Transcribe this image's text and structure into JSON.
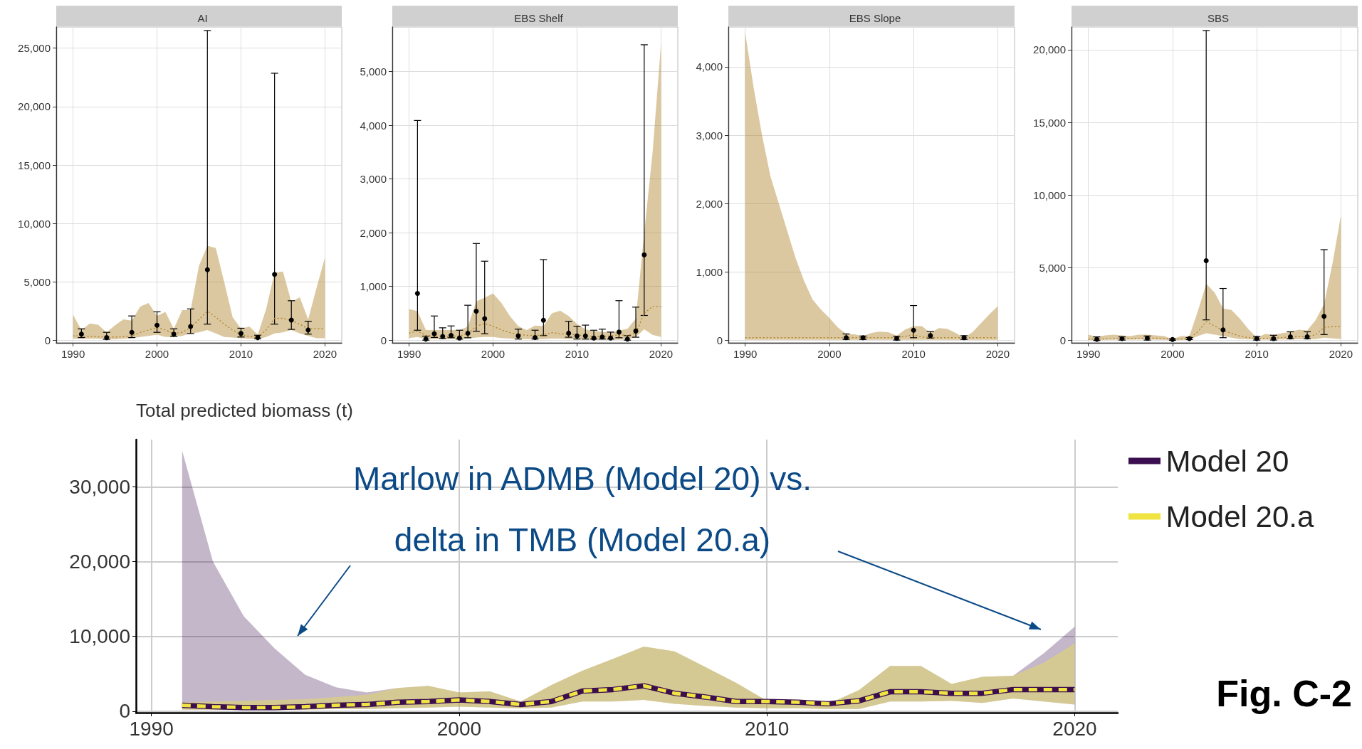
{
  "chart_data": [
    {
      "type": "line",
      "title": "AI",
      "xlim": [
        1988,
        2022
      ],
      "xticks": [
        1990,
        2000,
        2010,
        2020
      ],
      "ylim": [
        -200,
        26800
      ],
      "yticks": [
        {
          "value": 0,
          "label": "0"
        },
        {
          "value": 5000,
          "label": "5,000"
        },
        {
          "value": 10000,
          "label": "10,000"
        },
        {
          "value": 15000,
          "label": "15,000"
        },
        {
          "value": 20000,
          "label": "20,000"
        },
        {
          "value": 25000,
          "label": "25,000"
        }
      ],
      "grid": true,
      "series": [
        {
          "type": "line",
          "color": "#b1852c",
          "line_style": "dotted",
          "marker": "none",
          "x": [
            1990,
            1991,
            1992,
            1993,
            1994,
            1995,
            1996,
            1997,
            1998,
            1999,
            2000,
            2001,
            2002,
            2003,
            2004,
            2005,
            2006,
            2007,
            2008,
            2009,
            2010,
            2011,
            2012,
            2013,
            2014,
            2015,
            2016,
            2017,
            2018,
            2019,
            2020
          ],
          "values": [
            400,
            380,
            350,
            320,
            300,
            300,
            320,
            400,
            700,
            900,
            1100,
            900,
            600,
            700,
            1100,
            1800,
            2500,
            2000,
            1400,
            900,
            500,
            350,
            250,
            900,
            1900,
            1900,
            1700,
            1400,
            1000,
            1000,
            1000
          ],
          "upper": [
            2200,
            900,
            1450,
            1350,
            700,
            1300,
            1800,
            1700,
            2900,
            3200,
            2100,
            2450,
            1000,
            2600,
            2600,
            6400,
            8100,
            7900,
            5000,
            2000,
            1000,
            1200,
            500,
            2700,
            5800,
            5900,
            3300,
            3700,
            1800,
            4500,
            7100
          ],
          "lower": [
            150,
            150,
            150,
            150,
            100,
            100,
            150,
            200,
            300,
            400,
            500,
            300,
            300,
            400,
            600,
            700,
            900,
            600,
            300,
            250,
            200,
            150,
            100,
            300,
            600,
            700,
            900,
            600,
            400,
            200,
            200
          ]
        },
        {
          "type": "scatter",
          "color": "#000000",
          "marker": "circle",
          "x": [
            1991,
            1994,
            1997,
            2000,
            2002,
            2004,
            2006,
            2010,
            2012,
            2014,
            2016,
            2018
          ],
          "values": [
            550,
            250,
            700,
            1300,
            550,
            1200,
            6050,
            600,
            250,
            5650,
            1750,
            900
          ],
          "errors": [
            [
              250,
              1000
            ],
            [
              100,
              700
            ],
            [
              250,
              2100
            ],
            [
              700,
              2450
            ],
            [
              350,
              1000
            ],
            [
              600,
              2700
            ],
            [
              1400,
              26500
            ],
            [
              300,
              1050
            ],
            [
              150,
              450
            ],
            [
              1400,
              22850
            ],
            [
              950,
              3400
            ],
            [
              550,
              1650
            ]
          ]
        }
      ]
    },
    {
      "type": "line",
      "title": "EBS Shelf",
      "xlim": [
        1988,
        2022
      ],
      "xticks": [
        1990,
        2000,
        2010,
        2020
      ],
      "ylim": [
        -50,
        5830
      ],
      "yticks": [
        {
          "value": 0,
          "label": "0"
        },
        {
          "value": 1000,
          "label": "1,000"
        },
        {
          "value": 2000,
          "label": "2,000"
        },
        {
          "value": 3000,
          "label": "3,000"
        },
        {
          "value": 4000,
          "label": "4,000"
        },
        {
          "value": 5000,
          "label": "5,000"
        }
      ],
      "grid": true,
      "series": [
        {
          "type": "line",
          "color": "#b1852c",
          "line_style": "dotted",
          "marker": "none",
          "x": [
            1990,
            1991,
            1992,
            1993,
            1994,
            1995,
            1996,
            1997,
            1998,
            1999,
            2000,
            2001,
            2002,
            2003,
            2004,
            2005,
            2006,
            2007,
            2008,
            2009,
            2010,
            2011,
            2012,
            2013,
            2014,
            2015,
            2016,
            2017,
            2018,
            2019,
            2020
          ],
          "values": [
            130,
            170,
            90,
            70,
            70,
            70,
            80,
            120,
            260,
            310,
            260,
            190,
            140,
            110,
            90,
            90,
            100,
            140,
            120,
            110,
            100,
            80,
            70,
            70,
            80,
            100,
            90,
            130,
            500,
            630,
            630
          ],
          "upper": [
            580,
            540,
            190,
            190,
            190,
            190,
            190,
            250,
            720,
            790,
            870,
            690,
            450,
            260,
            190,
            270,
            260,
            500,
            550,
            450,
            300,
            200,
            170,
            160,
            140,
            180,
            210,
            400,
            2000,
            3500,
            5520
          ],
          "lower": [
            40,
            60,
            20,
            20,
            20,
            20,
            20,
            30,
            50,
            60,
            60,
            40,
            30,
            20,
            20,
            20,
            20,
            30,
            30,
            20,
            20,
            10,
            10,
            10,
            10,
            10,
            10,
            60,
            200,
            100,
            60
          ]
        },
        {
          "type": "scatter",
          "color": "#000000",
          "marker": "circle",
          "x": [
            1991,
            1992,
            1993,
            1994,
            1995,
            1996,
            1997,
            1998,
            1999,
            2003,
            2005,
            2006,
            2009,
            2010,
            2011,
            2012,
            2013,
            2014,
            2015,
            2016,
            2017,
            2018
          ],
          "values": [
            870,
            20,
            120,
            70,
            90,
            40,
            130,
            540,
            400,
            80,
            50,
            370,
            130,
            80,
            80,
            40,
            60,
            40,
            150,
            20,
            170,
            1590
          ],
          "errors": [
            [
              185,
              4090
            ],
            [
              0,
              75
            ],
            [
              50,
              450
            ],
            [
              30,
              230
            ],
            [
              45,
              265
            ],
            [
              20,
              185
            ],
            [
              45,
              650
            ],
            [
              165,
              1800
            ],
            [
              120,
              1470
            ],
            [
              20,
              205
            ],
            [
              20,
              185
            ],
            [
              85,
              1500
            ],
            [
              55,
              350
            ],
            [
              20,
              260
            ],
            [
              20,
              280
            ],
            [
              20,
              185
            ],
            [
              20,
              205
            ],
            [
              20,
              150
            ],
            [
              45,
              735
            ],
            [
              0,
              85
            ],
            [
              55,
              615
            ],
            [
              460,
              5500
            ]
          ]
        }
      ]
    },
    {
      "type": "line",
      "title": "EBS Slope",
      "xlim": [
        1988,
        2022
      ],
      "xticks": [
        1990,
        2000,
        2010,
        2020
      ],
      "ylim": [
        -35,
        4580
      ],
      "yticks": [
        {
          "value": 0,
          "label": "0"
        },
        {
          "value": 1000,
          "label": "1,000"
        },
        {
          "value": 2000,
          "label": "2,000"
        },
        {
          "value": 3000,
          "label": "3,000"
        },
        {
          "value": 4000,
          "label": "4,000"
        }
      ],
      "grid": true,
      "series": [
        {
          "type": "line",
          "color": "#b1852c",
          "line_style": "dotted",
          "marker": "none",
          "x": [
            1990,
            1991,
            1992,
            1993,
            1994,
            1995,
            1996,
            1997,
            1998,
            1999,
            2000,
            2001,
            2002,
            2003,
            2004,
            2005,
            2006,
            2007,
            2008,
            2009,
            2010,
            2011,
            2012,
            2013,
            2014,
            2015,
            2016,
            2017,
            2018,
            2019,
            2020
          ],
          "values": [
            40,
            40,
            40,
            40,
            40,
            40,
            40,
            40,
            40,
            40,
            40,
            40,
            40,
            40,
            40,
            40,
            40,
            40,
            40,
            60,
            80,
            50,
            40,
            40,
            40,
            40,
            40,
            40,
            40,
            40,
            40
          ],
          "upper": [
            4500,
            3700,
            3000,
            2400,
            2000,
            1600,
            1200,
            870,
            600,
            450,
            330,
            190,
            95,
            90,
            60,
            110,
            130,
            120,
            70,
            160,
            210,
            210,
            110,
            180,
            170,
            110,
            40,
            120,
            250,
            380,
            500
          ],
          "lower": [
            10,
            10,
            10,
            10,
            10,
            10,
            10,
            10,
            10,
            10,
            10,
            10,
            10,
            10,
            10,
            10,
            10,
            10,
            10,
            10,
            10,
            10,
            10,
            10,
            10,
            10,
            10,
            10,
            10,
            10,
            10
          ]
        },
        {
          "type": "scatter",
          "color": "#000000",
          "marker": "circle",
          "x": [
            2002,
            2004,
            2008,
            2010,
            2012,
            2016
          ],
          "values": [
            40,
            40,
            30,
            150,
            70,
            40
          ],
          "errors": [
            [
              15,
              95
            ],
            [
              15,
              65
            ],
            [
              5,
              60
            ],
            [
              40,
              510
            ],
            [
              35,
              130
            ],
            [
              15,
              70
            ]
          ]
        }
      ]
    },
    {
      "type": "line",
      "title": "SBS",
      "xlim": [
        1988,
        2022
      ],
      "xticks": [
        1990,
        2000,
        2010,
        2020
      ],
      "ylim": [
        -160,
        21560
      ],
      "yticks": [
        {
          "value": 0,
          "label": "0"
        },
        {
          "value": 5000,
          "label": "5,000"
        },
        {
          "value": 10000,
          "label": "10,000"
        },
        {
          "value": 15000,
          "label": "15,000"
        },
        {
          "value": 20000,
          "label": "20,000"
        }
      ],
      "grid": true,
      "series": [
        {
          "type": "line",
          "color": "#b1852c",
          "line_style": "dotted",
          "marker": "none",
          "x": [
            1990,
            1991,
            1992,
            1993,
            1994,
            1995,
            1996,
            1997,
            1998,
            1999,
            2000,
            2001,
            2002,
            2003,
            2004,
            2005,
            2006,
            2007,
            2008,
            2009,
            2010,
            2011,
            2012,
            2013,
            2014,
            2015,
            2016,
            2017,
            2018,
            2019,
            2020
          ],
          "values": [
            80,
            90,
            110,
            120,
            130,
            140,
            150,
            160,
            160,
            140,
            90,
            110,
            150,
            600,
            1300,
            1000,
            700,
            500,
            300,
            200,
            150,
            150,
            170,
            200,
            250,
            260,
            260,
            400,
            900,
            950,
            950
          ],
          "upper": [
            400,
            250,
            350,
            400,
            350,
            300,
            400,
            400,
            350,
            300,
            100,
            300,
            300,
            2000,
            3900,
            3300,
            2200,
            2100,
            1500,
            800,
            200,
            450,
            400,
            500,
            600,
            750,
            700,
            1400,
            2500,
            5300,
            8600
          ],
          "lower": [
            30,
            30,
            50,
            60,
            60,
            60,
            70,
            70,
            60,
            50,
            20,
            40,
            60,
            300,
            500,
            400,
            300,
            200,
            100,
            80,
            60,
            60,
            60,
            70,
            80,
            80,
            80,
            100,
            200,
            150,
            100
          ]
        },
        {
          "type": "scatter",
          "color": "#000000",
          "marker": "circle",
          "x": [
            1991,
            1994,
            1997,
            2000,
            2002,
            2004,
            2006,
            2010,
            2012,
            2014,
            2016,
            2018
          ],
          "values": [
            80,
            130,
            160,
            70,
            130,
            5490,
            730,
            130,
            130,
            250,
            250,
            1660
          ],
          "errors": [
            [
              0,
              250
            ],
            [
              30,
              250
            ],
            [
              30,
              310
            ],
            [
              15,
              110
            ],
            [
              65,
              200
            ],
            [
              1420,
              21320
            ],
            [
              195,
              3580
            ],
            [
              30,
              280
            ],
            [
              30,
              360
            ],
            [
              115,
              600
            ],
            [
              115,
              600
            ],
            [
              410,
              6250
            ]
          ]
        }
      ]
    },
    {
      "type": "line",
      "ylabel": "Total predicted biomass (t)",
      "xlim": [
        1989.5,
        2021.4
      ],
      "xticks": [
        1990,
        2000,
        2010,
        2020
      ],
      "ylim": [
        -200,
        36300
      ],
      "yticks": [
        {
          "value": 0,
          "label": "0"
        },
        {
          "value": 10000,
          "label": "10,000"
        },
        {
          "value": 20000,
          "label": "20,000"
        },
        {
          "value": 30000,
          "label": "30,000"
        }
      ],
      "grid": true,
      "legend": "right",
      "annotations": [
        "Marlow in ADMB (Model 20) vs.\ndelta in TMB (Model 20.a)",
        "Fig. C-2"
      ],
      "series": [
        {
          "name": "Model 20",
          "type": "line",
          "color": "#3b0f4f",
          "line_style": "solid",
          "marker": "none",
          "x": [
            1991,
            1992,
            1993,
            1994,
            1995,
            1996,
            1997,
            1998,
            1999,
            2000,
            2001,
            2002,
            2003,
            2004,
            2005,
            2006,
            2007,
            2008,
            2009,
            2010,
            2011,
            2012,
            2013,
            2014,
            2015,
            2016,
            2017,
            2018,
            2019,
            2020
          ],
          "values": [
            800,
            600,
            500,
            500,
            600,
            800,
            900,
            1200,
            1300,
            1500,
            1300,
            900,
            1300,
            2700,
            2900,
            3400,
            2400,
            1900,
            1300,
            1300,
            1200,
            1000,
            1400,
            2600,
            2600,
            2400,
            2400,
            2900,
            2900,
            2900
          ],
          "upper": [
            34800,
            20000,
            12700,
            8400,
            4850,
            3200,
            2500,
            3100,
            3400,
            2500,
            2650,
            1300,
            3500,
            5400,
            7000,
            8650,
            8000,
            5900,
            3800,
            1400,
            1500,
            1000,
            2850,
            6050,
            6050,
            3650,
            4600,
            4750,
            7750,
            11300
          ],
          "lower": [
            200,
            200,
            200,
            200,
            200,
            300,
            300,
            400,
            500,
            600,
            500,
            400,
            500,
            1300,
            1300,
            1500,
            1000,
            700,
            500,
            400,
            400,
            300,
            300,
            1300,
            1300,
            1400,
            1100,
            1700,
            1300,
            900
          ]
        },
        {
          "name": "Model 20.a",
          "type": "line",
          "color": "#f0e442",
          "line_style": "dashed",
          "marker": "none",
          "x": [
            1991,
            1992,
            1993,
            1994,
            1995,
            1996,
            1997,
            1998,
            1999,
            2000,
            2001,
            2002,
            2003,
            2004,
            2005,
            2006,
            2007,
            2008,
            2009,
            2010,
            2011,
            2012,
            2013,
            2014,
            2015,
            2016,
            2017,
            2018,
            2019,
            2020
          ],
          "values": [
            800,
            600,
            500,
            500,
            600,
            800,
            900,
            1200,
            1300,
            1500,
            1300,
            900,
            1300,
            2700,
            2900,
            3400,
            2400,
            1900,
            1300,
            1300,
            1200,
            1000,
            1400,
            2600,
            2600,
            2400,
            2400,
            2900,
            2900,
            2900
          ],
          "upper": [
            1200,
            1300,
            1400,
            1500,
            1600,
            1900,
            2200,
            3100,
            3400,
            2500,
            2650,
            1300,
            3500,
            5400,
            7000,
            8650,
            8000,
            5900,
            3800,
            1400,
            1500,
            1000,
            2850,
            6050,
            6050,
            3650,
            4600,
            4750,
            6500,
            9050
          ],
          "lower": [
            200,
            200,
            200,
            200,
            200,
            300,
            300,
            400,
            500,
            600,
            500,
            400,
            500,
            1300,
            1300,
            1500,
            1000,
            700,
            500,
            400,
            400,
            300,
            300,
            1300,
            1300,
            1400,
            1100,
            1700,
            1300,
            900
          ]
        }
      ]
    }
  ]
}
